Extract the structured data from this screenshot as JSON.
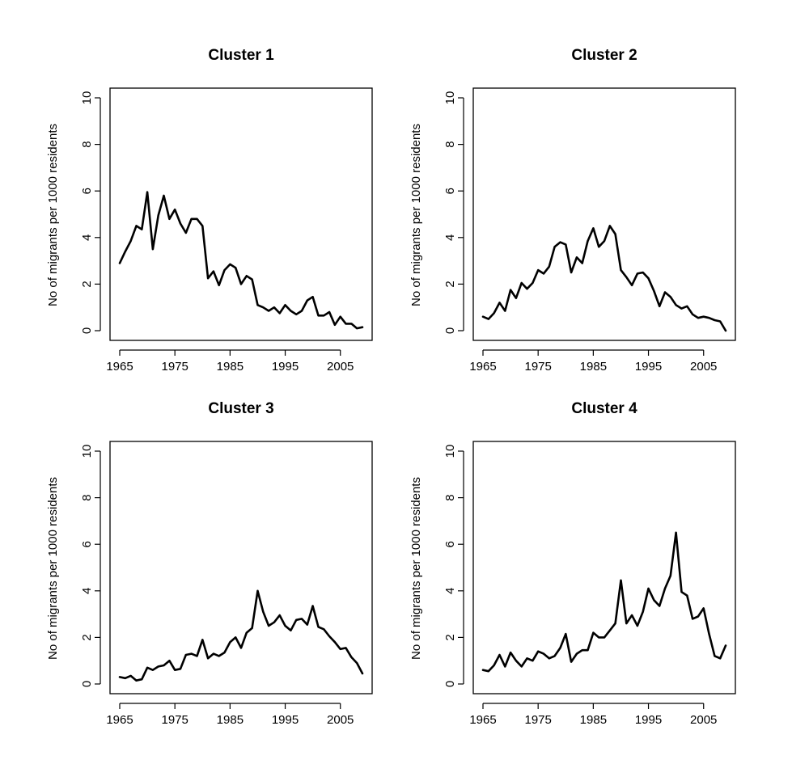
{
  "chart_data": [
    {
      "type": "line",
      "title": "Cluster 1",
      "xlabel": "",
      "ylabel": "No of migrants per 1000 residents",
      "xlim": [
        1965,
        2009
      ],
      "ylim": [
        0,
        10
      ],
      "xticks": [
        "1965",
        "1975",
        "1985",
        "1995",
        "2005"
      ],
      "yticks": [
        "0",
        "2",
        "4",
        "6",
        "8",
        "10"
      ],
      "x": [
        1965,
        1966,
        1967,
        1968,
        1969,
        1970,
        1971,
        1972,
        1973,
        1974,
        1975,
        1976,
        1977,
        1978,
        1979,
        1980,
        1981,
        1982,
        1983,
        1984,
        1985,
        1986,
        1987,
        1988,
        1989,
        1990,
        1991,
        1992,
        1993,
        1994,
        1995,
        1996,
        1997,
        1998,
        1999,
        2000,
        2001,
        2002,
        2003,
        2004,
        2005,
        2006,
        2007,
        2008,
        2009
      ],
      "values": [
        2.9,
        3.4,
        3.85,
        4.5,
        4.35,
        5.95,
        3.5,
        4.95,
        5.8,
        4.8,
        5.2,
        4.6,
        4.2,
        4.8,
        4.8,
        4.5,
        2.25,
        2.55,
        1.95,
        2.6,
        2.85,
        2.7,
        2.0,
        2.35,
        2.2,
        1.1,
        1.0,
        0.85,
        1.0,
        0.75,
        1.1,
        0.85,
        0.7,
        0.85,
        1.3,
        1.45,
        0.65,
        0.65,
        0.8,
        0.25,
        0.6,
        0.3,
        0.3,
        0.1,
        0.15
      ]
    },
    {
      "type": "line",
      "title": "Cluster 2",
      "xlabel": "",
      "ylabel": "No of migrants per 1000 residents",
      "xlim": [
        1965,
        2009
      ],
      "ylim": [
        0,
        10
      ],
      "xticks": [
        "1965",
        "1975",
        "1985",
        "1995",
        "2005"
      ],
      "yticks": [
        "0",
        "2",
        "4",
        "6",
        "8",
        "10"
      ],
      "x": [
        1965,
        1966,
        1967,
        1968,
        1969,
        1970,
        1971,
        1972,
        1973,
        1974,
        1975,
        1976,
        1977,
        1978,
        1979,
        1980,
        1981,
        1982,
        1983,
        1984,
        1985,
        1986,
        1987,
        1988,
        1989,
        1990,
        1991,
        1992,
        1993,
        1994,
        1995,
        1996,
        1997,
        1998,
        1999,
        2000,
        2001,
        2002,
        2003,
        2004,
        2005,
        2006,
        2007,
        2008,
        2009
      ],
      "values": [
        0.6,
        0.5,
        0.75,
        1.2,
        0.85,
        1.75,
        1.4,
        2.05,
        1.8,
        2.05,
        2.6,
        2.45,
        2.75,
        3.6,
        3.8,
        3.7,
        2.5,
        3.15,
        2.9,
        3.85,
        4.4,
        3.6,
        3.85,
        4.5,
        4.15,
        2.6,
        2.3,
        1.95,
        2.45,
        2.5,
        2.25,
        1.7,
        1.05,
        1.65,
        1.45,
        1.1,
        0.95,
        1.05,
        0.7,
        0.55,
        0.6,
        0.55,
        0.45,
        0.4,
        0.0
      ]
    },
    {
      "type": "line",
      "title": "Cluster 3",
      "xlabel": "",
      "ylabel": "No of migrants per 1000 residents",
      "xlim": [
        1965,
        2009
      ],
      "ylim": [
        0,
        10
      ],
      "xticks": [
        "1965",
        "1975",
        "1985",
        "1995",
        "2005"
      ],
      "yticks": [
        "0",
        "2",
        "4",
        "6",
        "8",
        "10"
      ],
      "x": [
        1965,
        1966,
        1967,
        1968,
        1969,
        1970,
        1971,
        1972,
        1973,
        1974,
        1975,
        1976,
        1977,
        1978,
        1979,
        1980,
        1981,
        1982,
        1983,
        1984,
        1985,
        1986,
        1987,
        1988,
        1989,
        1990,
        1991,
        1992,
        1993,
        1994,
        1995,
        1996,
        1997,
        1998,
        1999,
        2000,
        2001,
        2002,
        2003,
        2004,
        2005,
        2006,
        2007,
        2008,
        2009
      ],
      "values": [
        0.3,
        0.25,
        0.35,
        0.15,
        0.2,
        0.7,
        0.6,
        0.75,
        0.8,
        1.0,
        0.6,
        0.65,
        1.25,
        1.3,
        1.2,
        1.9,
        1.1,
        1.3,
        1.2,
        1.35,
        1.8,
        2.0,
        1.55,
        2.2,
        2.4,
        4.0,
        3.1,
        2.5,
        2.65,
        2.95,
        2.5,
        2.3,
        2.75,
        2.8,
        2.55,
        3.35,
        2.45,
        2.35,
        2.05,
        1.8,
        1.5,
        1.55,
        1.15,
        0.9,
        0.45
      ]
    },
    {
      "type": "line",
      "title": "Cluster 4",
      "xlabel": "",
      "ylabel": "No of migrants per 1000 residents",
      "xlim": [
        1965,
        2009
      ],
      "ylim": [
        0,
        10
      ],
      "xticks": [
        "1965",
        "1975",
        "1985",
        "1995",
        "2005"
      ],
      "yticks": [
        "0",
        "2",
        "4",
        "6",
        "8",
        "10"
      ],
      "x": [
        1965,
        1966,
        1967,
        1968,
        1969,
        1970,
        1971,
        1972,
        1973,
        1974,
        1975,
        1976,
        1977,
        1978,
        1979,
        1980,
        1981,
        1982,
        1983,
        1984,
        1985,
        1986,
        1987,
        1988,
        1989,
        1990,
        1991,
        1992,
        1993,
        1994,
        1995,
        1996,
        1997,
        1998,
        1999,
        2000,
        2001,
        2002,
        2003,
        2004,
        2005,
        2006,
        2007,
        2008,
        2009
      ],
      "values": [
        0.6,
        0.55,
        0.8,
        1.25,
        0.75,
        1.35,
        1.0,
        0.75,
        1.1,
        1.0,
        1.4,
        1.3,
        1.1,
        1.2,
        1.55,
        2.15,
        0.95,
        1.3,
        1.45,
        1.45,
        2.2,
        2.0,
        2.0,
        2.3,
        2.6,
        4.45,
        2.6,
        2.95,
        2.5,
        3.1,
        4.1,
        3.6,
        3.35,
        4.1,
        4.65,
        6.5,
        3.95,
        3.8,
        2.8,
        2.9,
        3.25,
        2.15,
        1.2,
        1.1,
        1.65
      ]
    }
  ]
}
